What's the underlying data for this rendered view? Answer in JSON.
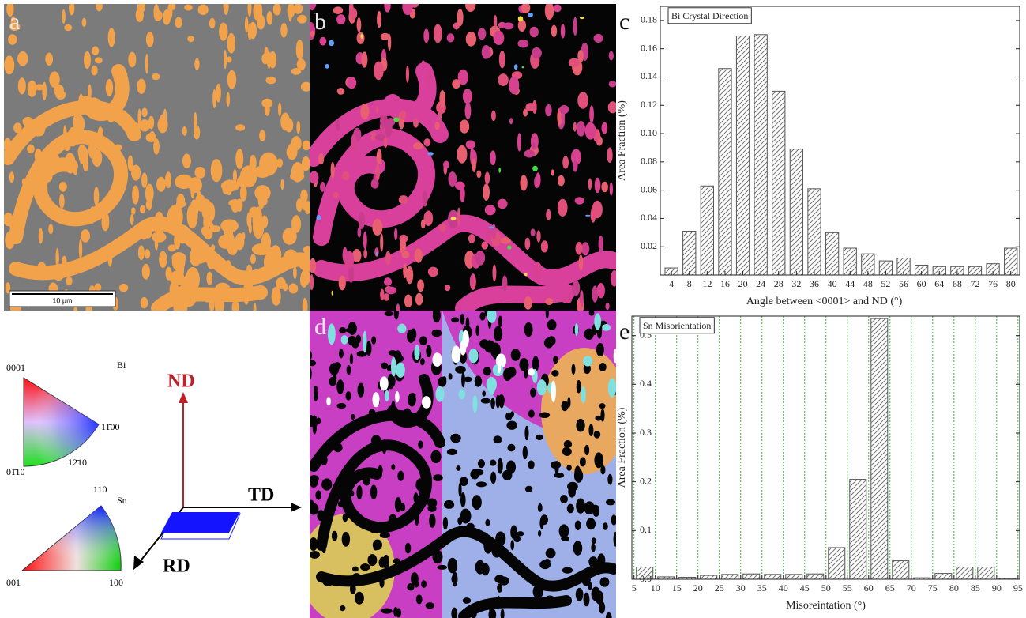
{
  "panels": {
    "a": {
      "label": "a",
      "scale_bar": "10 μm"
    },
    "b": {
      "label": "b"
    },
    "d": {
      "label": "d"
    }
  },
  "ipf": {
    "bi": {
      "name": "Bi",
      "top": "0001",
      "right": "11̄00",
      "bottom": "01̄10",
      "edge": "12̄10"
    },
    "sn": {
      "name": "Sn",
      "top": "110",
      "left": "001",
      "right": "100"
    }
  },
  "frame": {
    "nd": "ND",
    "td": "TD",
    "rd": "RD"
  },
  "chart_data": [
    {
      "type": "bar",
      "panel_label": "c",
      "legend": "Bi Crystal Direction",
      "x_label": "Angle between <0001> and ND (°)",
      "y_label": "Area Fraction (%)",
      "x": [
        4,
        8,
        12,
        16,
        20,
        24,
        28,
        32,
        36,
        40,
        44,
        48,
        52,
        56,
        60,
        64,
        68,
        72,
        76,
        80
      ],
      "values": [
        0.005,
        0.031,
        0.063,
        0.146,
        0.169,
        0.17,
        0.13,
        0.089,
        0.061,
        0.03,
        0.019,
        0.015,
        0.01,
        0.012,
        0.007,
        0.006,
        0.006,
        0.006,
        0.008,
        0.019
      ],
      "color": "#555555",
      "xlim": [
        1.5,
        82
      ],
      "ylim": [
        0,
        0.19
      ],
      "xticks": [
        4,
        8,
        12,
        16,
        20,
        24,
        28,
        32,
        36,
        40,
        44,
        48,
        52,
        56,
        60,
        64,
        68,
        72,
        76,
        80
      ],
      "yticks": [
        0.02,
        0.04,
        0.06,
        0.08,
        {
          "value": 0.1,
          "label": "0.10"
        },
        0.12,
        0.14,
        0.16,
        0.18
      ]
    },
    {
      "type": "histogram",
      "panel_label": "e",
      "legend": "Sn Misorientation",
      "x_label": "Misoreintation (°)",
      "y_label": "Area Fraction (%)",
      "bins": [
        5,
        10,
        15,
        20,
        25,
        30,
        35,
        40,
        45,
        50,
        55,
        60,
        65,
        70,
        75,
        80,
        85,
        90,
        95
      ],
      "values": [
        0.025,
        0.005,
        0.004,
        0.008,
        0.01,
        0.011,
        0.01,
        0.01,
        0.011,
        0.065,
        0.205,
        0.535,
        0.038,
        0.003,
        0.012,
        0.025,
        0.025,
        0.002
      ],
      "color": "#555555",
      "grid": true,
      "grid_color": "#3cb43c",
      "xlim": [
        4.5,
        95.4
      ],
      "ylim": [
        0,
        0.54
      ],
      "xticks": [
        5,
        10,
        15,
        20,
        25,
        30,
        35,
        40,
        45,
        50,
        55,
        60,
        65,
        70,
        75,
        80,
        85,
        90,
        95
      ],
      "yticks": [
        {
          "value": 0,
          "label": "0.0"
        },
        0.1,
        0.2,
        0.3,
        0.4,
        0.5
      ]
    }
  ]
}
